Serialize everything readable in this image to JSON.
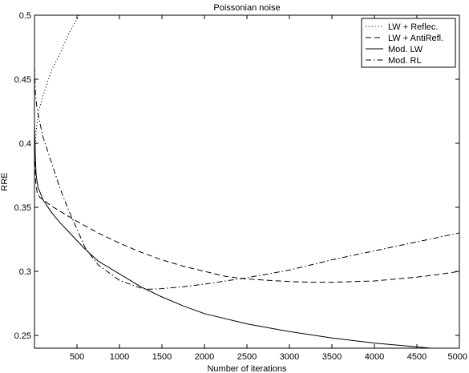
{
  "chart_data": {
    "type": "line",
    "title": "Poissonian noise",
    "xlabel": "Number of iterations",
    "ylabel": "RRE",
    "xlim": [
      0,
      5000
    ],
    "ylim": [
      0.24,
      0.5
    ],
    "xticks": [
      500,
      1000,
      1500,
      2000,
      2500,
      3000,
      3500,
      4000,
      4500,
      5000
    ],
    "xtick_labels": [
      "500",
      "1000",
      "1500",
      "2000",
      "2500",
      "3000",
      "3500",
      "4000",
      "4500",
      "5000"
    ],
    "yticks": [
      0.25,
      0.3,
      0.35,
      0.4,
      0.45,
      0.5
    ],
    "ytick_labels": [
      "0.25",
      "0.3",
      "0.35",
      "0.4",
      "0.45",
      "0.5"
    ],
    "grid": false,
    "legend_position": "top-right",
    "series": [
      {
        "name": "LW + Reflec.",
        "style": "dotted",
        "color": "#000000",
        "points": [
          [
            0,
            0.385
          ],
          [
            20,
            0.41
          ],
          [
            50,
            0.425
          ],
          [
            100,
            0.437
          ],
          [
            150,
            0.447
          ],
          [
            200,
            0.457
          ],
          [
            300,
            0.47
          ],
          [
            400,
            0.485
          ],
          [
            500,
            0.497
          ],
          [
            550,
            0.503
          ]
        ]
      },
      {
        "name": "LW + AntiRefl.",
        "style": "dashed",
        "color": "#000000",
        "points": [
          [
            0,
            0.4
          ],
          [
            15,
            0.37
          ],
          [
            30,
            0.362
          ],
          [
            60,
            0.358
          ],
          [
            100,
            0.356
          ],
          [
            200,
            0.351
          ],
          [
            300,
            0.347
          ],
          [
            500,
            0.339
          ],
          [
            750,
            0.33
          ],
          [
            1000,
            0.322
          ],
          [
            1250,
            0.315
          ],
          [
            1500,
            0.309
          ],
          [
            1750,
            0.304
          ],
          [
            2000,
            0.3
          ],
          [
            2250,
            0.296
          ],
          [
            2500,
            0.294
          ],
          [
            2750,
            0.293
          ],
          [
            3000,
            0.292
          ],
          [
            3250,
            0.2915
          ],
          [
            3500,
            0.2915
          ],
          [
            3750,
            0.292
          ],
          [
            4000,
            0.2925
          ],
          [
            4250,
            0.294
          ],
          [
            4500,
            0.2955
          ],
          [
            4750,
            0.2975
          ],
          [
            5000,
            0.3
          ]
        ]
      },
      {
        "name": "Mod. LW",
        "style": "solid",
        "color": "#000000",
        "points": [
          [
            0,
            0.415
          ],
          [
            10,
            0.39
          ],
          [
            20,
            0.375
          ],
          [
            40,
            0.366
          ],
          [
            100,
            0.356
          ],
          [
            200,
            0.346
          ],
          [
            300,
            0.338
          ],
          [
            400,
            0.331
          ],
          [
            500,
            0.324
          ],
          [
            600,
            0.317
          ],
          [
            750,
            0.308
          ],
          [
            1000,
            0.298
          ],
          [
            1250,
            0.288
          ],
          [
            1500,
            0.28
          ],
          [
            1750,
            0.273
          ],
          [
            2000,
            0.267
          ],
          [
            2500,
            0.259
          ],
          [
            3000,
            0.253
          ],
          [
            3500,
            0.248
          ],
          [
            4000,
            0.244
          ],
          [
            4500,
            0.241
          ],
          [
            5000,
            0.238
          ]
        ]
      },
      {
        "name": "Mod. RL",
        "style": "dashdot",
        "color": "#000000",
        "points": [
          [
            0,
            0.46
          ],
          [
            10,
            0.44
          ],
          [
            25,
            0.43
          ],
          [
            50,
            0.42
          ],
          [
            100,
            0.405
          ],
          [
            200,
            0.385
          ],
          [
            300,
            0.365
          ],
          [
            400,
            0.348
          ],
          [
            500,
            0.333
          ],
          [
            600,
            0.318
          ],
          [
            750,
            0.305
          ],
          [
            1000,
            0.293
          ],
          [
            1250,
            0.287
          ],
          [
            1350,
            0.286
          ],
          [
            1500,
            0.2865
          ],
          [
            1750,
            0.288
          ],
          [
            2000,
            0.29
          ],
          [
            2500,
            0.295
          ],
          [
            3000,
            0.301
          ],
          [
            3500,
            0.309
          ],
          [
            4000,
            0.316
          ],
          [
            4500,
            0.323
          ],
          [
            5000,
            0.33
          ]
        ]
      }
    ]
  }
}
